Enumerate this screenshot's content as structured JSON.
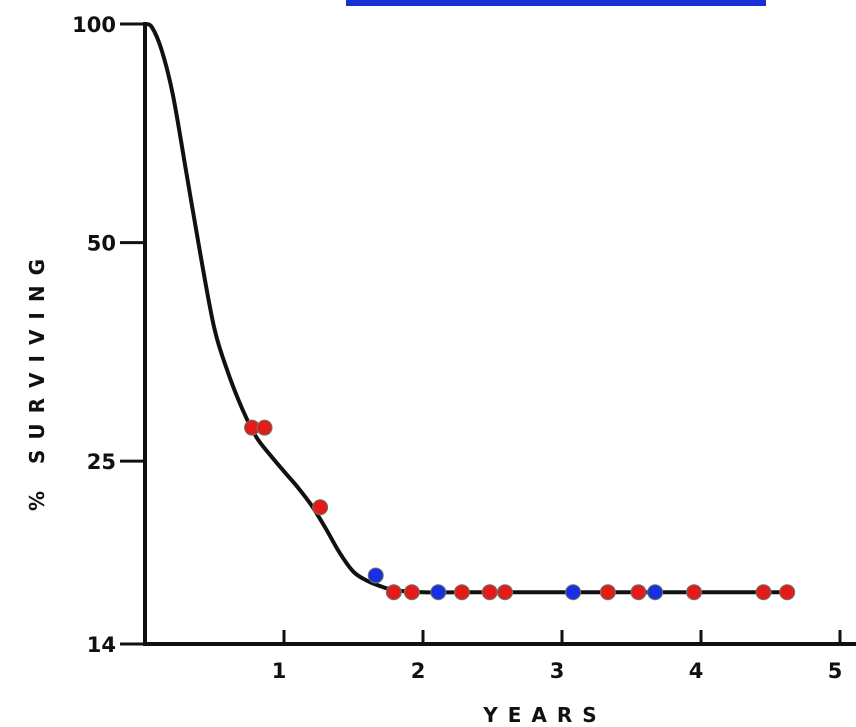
{
  "chart_data": {
    "type": "line",
    "title": "",
    "xlabel": "YEARS",
    "ylabel": "% SURVIVING",
    "xlim": [
      0,
      5
    ],
    "ylim": [
      14,
      100
    ],
    "y_scale": "log",
    "grid": false,
    "x_ticks": [
      "1",
      "2",
      "3",
      "4",
      "5"
    ],
    "y_ticks": [
      "100",
      "50",
      "25",
      "14"
    ],
    "colors": {
      "curve": "#111111",
      "red": "#e21b1b",
      "blue": "#1b2fe0",
      "banner": "#1a2fd6"
    },
    "curve": {
      "x": [
        0,
        0.05,
        0.12,
        0.2,
        0.3,
        0.4,
        0.5,
        0.6,
        0.7,
        0.8,
        0.9,
        1.0,
        1.1,
        1.2,
        1.3,
        1.4,
        1.5,
        1.6,
        1.7,
        1.8,
        2.0,
        2.5,
        3.0,
        3.5,
        4.0,
        4.5,
        4.65
      ],
      "y": [
        100,
        99,
        92,
        80,
        62,
        48,
        38,
        33,
        29.5,
        27,
        25.5,
        24.2,
        23,
        21.7,
        20.2,
        18.7,
        17.6,
        17.1,
        16.8,
        16.6,
        16.5,
        16.5,
        16.5,
        16.5,
        16.5,
        16.5,
        16.5
      ]
    },
    "points": [
      {
        "x": 0.77,
        "y": 27.8,
        "color": "red"
      },
      {
        "x": 0.86,
        "y": 27.8,
        "color": "red"
      },
      {
        "x": 1.26,
        "y": 21.6,
        "color": "red"
      },
      {
        "x": 1.66,
        "y": 17.4,
        "color": "blue"
      },
      {
        "x": 1.79,
        "y": 16.5,
        "color": "red"
      },
      {
        "x": 1.92,
        "y": 16.5,
        "color": "red"
      },
      {
        "x": 2.11,
        "y": 16.5,
        "color": "blue"
      },
      {
        "x": 2.28,
        "y": 16.5,
        "color": "red"
      },
      {
        "x": 2.48,
        "y": 16.5,
        "color": "red"
      },
      {
        "x": 2.59,
        "y": 16.5,
        "color": "red"
      },
      {
        "x": 3.08,
        "y": 16.5,
        "color": "blue"
      },
      {
        "x": 3.33,
        "y": 16.5,
        "color": "red"
      },
      {
        "x": 3.55,
        "y": 16.5,
        "color": "red"
      },
      {
        "x": 3.67,
        "y": 16.5,
        "color": "blue"
      },
      {
        "x": 3.95,
        "y": 16.5,
        "color": "red"
      },
      {
        "x": 4.45,
        "y": 16.5,
        "color": "red"
      },
      {
        "x": 4.62,
        "y": 16.5,
        "color": "red"
      }
    ]
  }
}
